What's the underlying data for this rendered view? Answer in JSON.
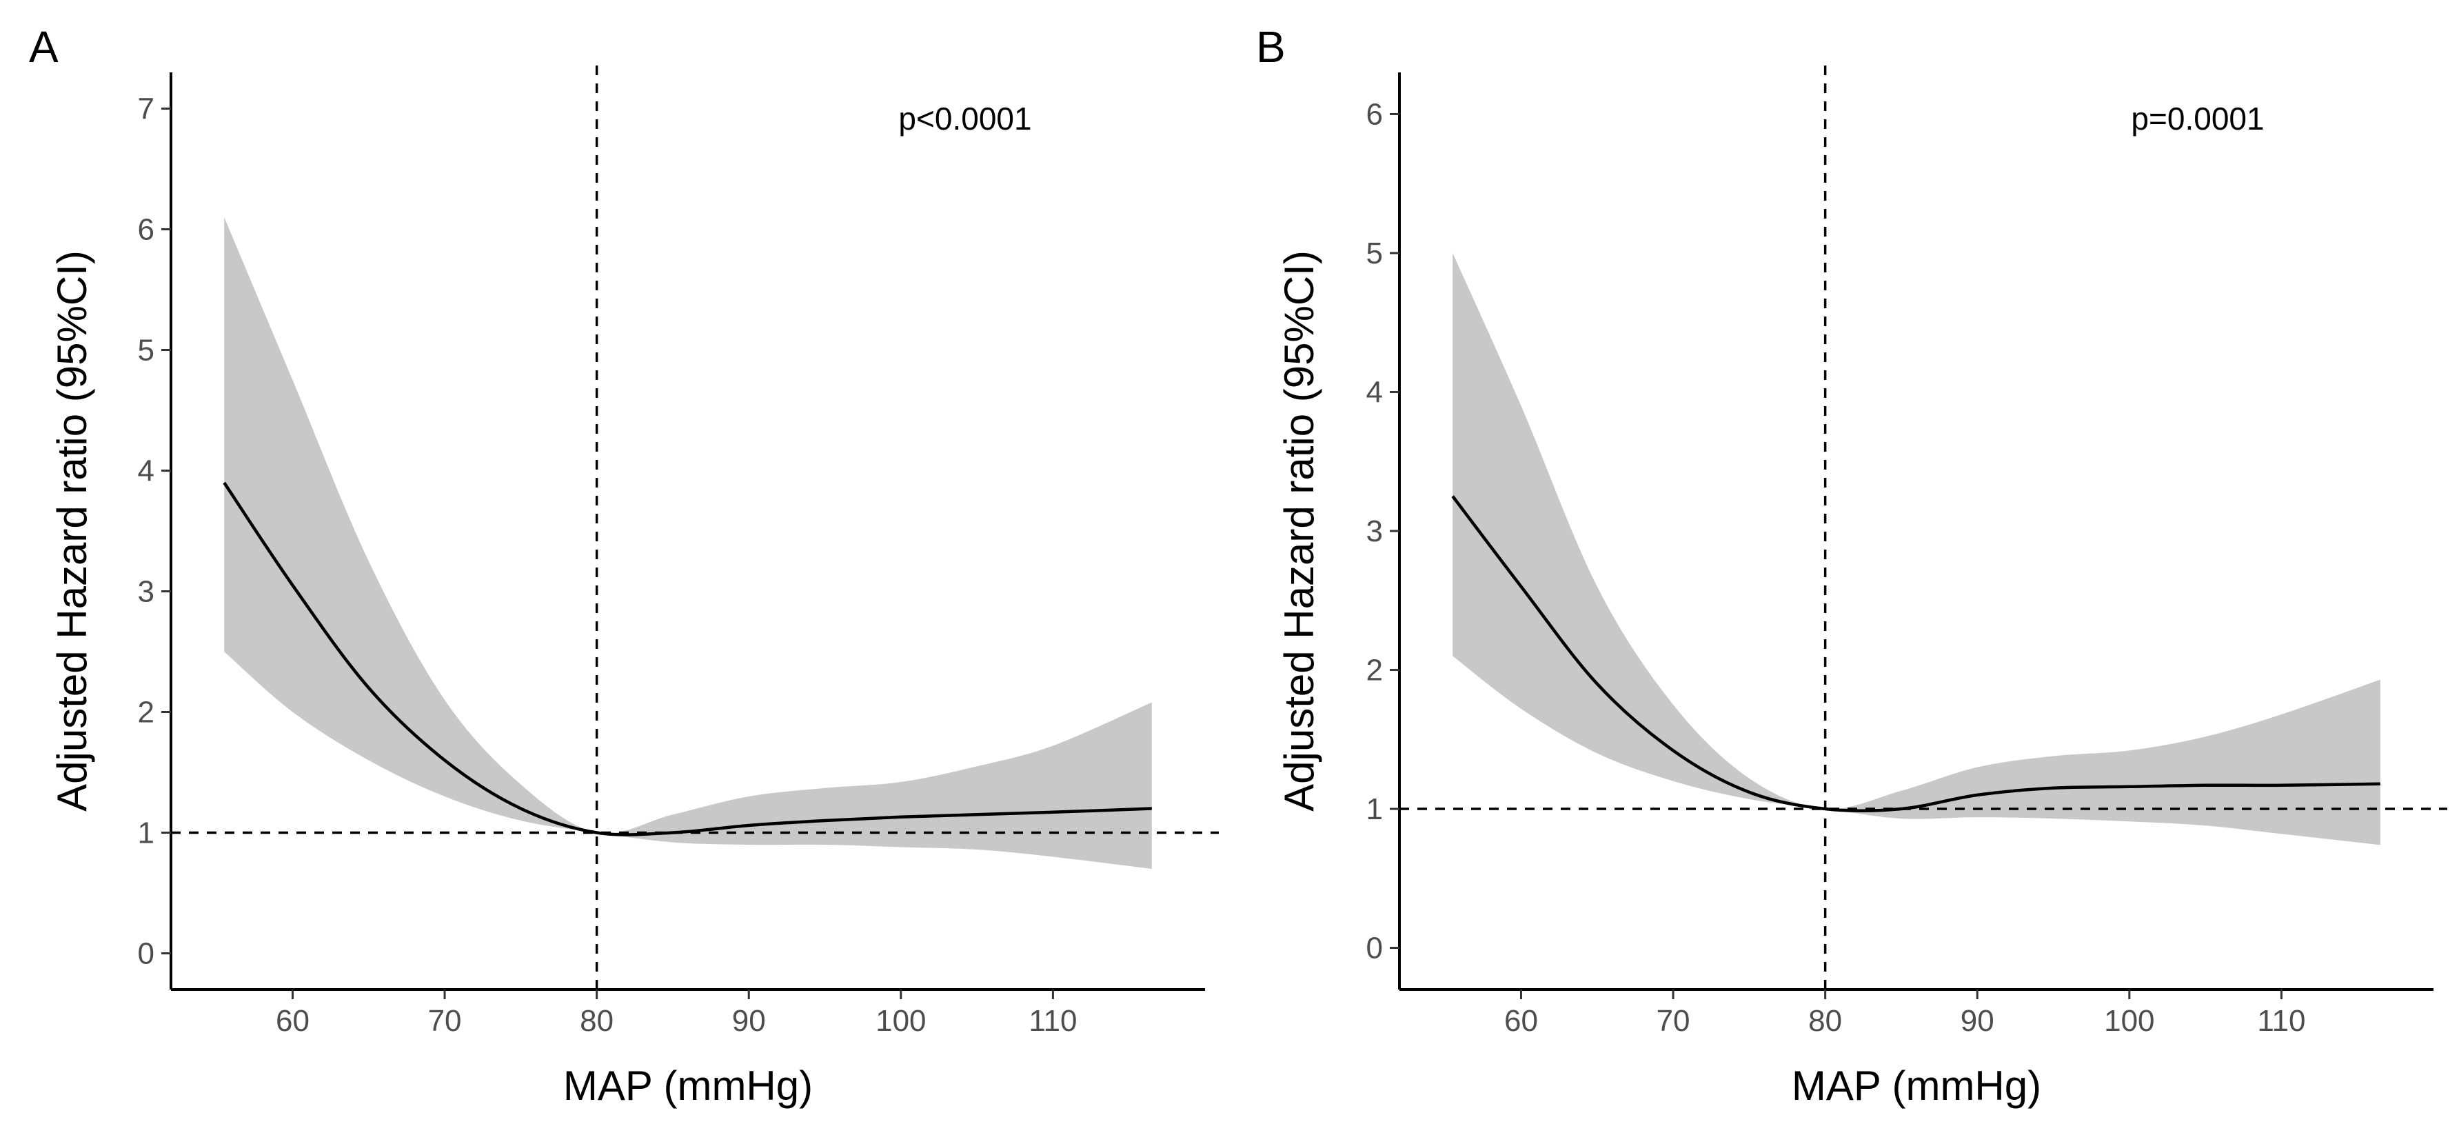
{
  "chart_data": [
    {
      "type": "line",
      "panel": "A",
      "title": "",
      "xlabel": "MAP (mmHg)",
      "ylabel": "Adjusted Hazard ratio (95%CI)",
      "xlim": [
        52,
        120
      ],
      "ylim": [
        -0.3,
        7.3
      ],
      "xticks": [
        60,
        70,
        80,
        90,
        100,
        110
      ],
      "yticks": [
        0,
        1,
        2,
        3,
        4,
        5,
        6,
        7
      ],
      "reference_hline": 1,
      "reference_vline": 80,
      "annotation": "p<0.0001",
      "series": [
        {
          "name": "Adjusted HR",
          "x": [
            55.5,
            60,
            65,
            70,
            75,
            80,
            85,
            90,
            95,
            100,
            105,
            110,
            116.5
          ],
          "y": [
            3.9,
            3.05,
            2.2,
            1.6,
            1.2,
            1.0,
            1.0,
            1.06,
            1.1,
            1.13,
            1.15,
            1.17,
            1.2
          ],
          "ci_lower": [
            2.5,
            2.0,
            1.6,
            1.3,
            1.1,
            1.0,
            0.92,
            0.9,
            0.9,
            0.88,
            0.86,
            0.8,
            0.7
          ],
          "ci_upper": [
            6.1,
            4.75,
            3.25,
            2.1,
            1.4,
            1.0,
            1.15,
            1.3,
            1.37,
            1.42,
            1.55,
            1.72,
            2.08
          ]
        }
      ]
    },
    {
      "type": "line",
      "panel": "B",
      "title": "",
      "xlabel": "MAP (mmHg)",
      "ylabel": "Adjusted Hazard ratio (95%CI)",
      "xlim": [
        52,
        120
      ],
      "ylim": [
        -0.3,
        6.3
      ],
      "xticks": [
        60,
        70,
        80,
        90,
        100,
        110
      ],
      "yticks": [
        0,
        1,
        2,
        3,
        4,
        5,
        6
      ],
      "reference_hline": 1,
      "reference_vline": 80,
      "annotation": "p=0.0001",
      "series": [
        {
          "name": "Adjusted HR",
          "x": [
            55.5,
            60,
            65,
            70,
            75,
            80,
            85,
            90,
            95,
            100,
            105,
            110,
            116.5
          ],
          "y": [
            3.25,
            2.6,
            1.9,
            1.42,
            1.12,
            1.0,
            1.0,
            1.1,
            1.15,
            1.16,
            1.17,
            1.17,
            1.18
          ],
          "ci_lower": [
            2.1,
            1.72,
            1.4,
            1.2,
            1.07,
            1.0,
            0.93,
            0.94,
            0.93,
            0.91,
            0.88,
            0.82,
            0.74
          ],
          "ci_upper": [
            5.0,
            3.9,
            2.6,
            1.75,
            1.22,
            1.0,
            1.13,
            1.3,
            1.38,
            1.42,
            1.52,
            1.68,
            1.93
          ]
        }
      ]
    }
  ]
}
